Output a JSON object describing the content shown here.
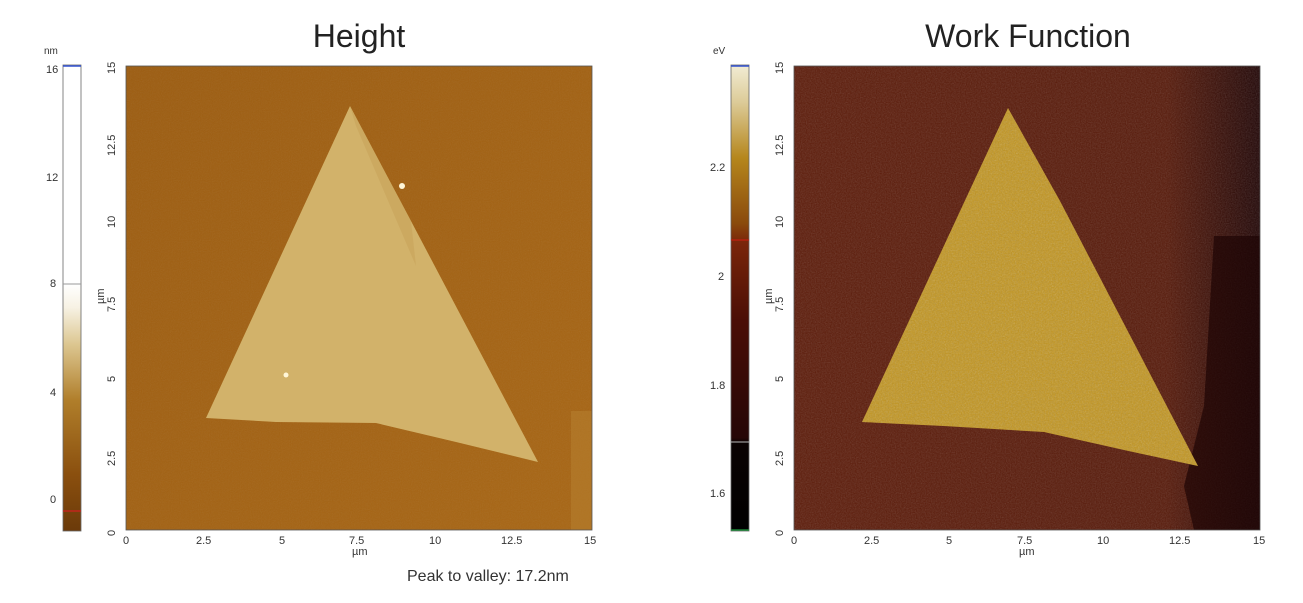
{
  "panels": [
    {
      "title": "Height",
      "colorbar": {
        "unit": "nm",
        "ticks": [
          "16",
          "12",
          "8",
          "4",
          "0"
        ],
        "colors": [
          "#6b3a0a",
          "#a66a12",
          "#c9a05a",
          "#f0e6cc",
          "#ffffff"
        ]
      },
      "axis_unit": "µm",
      "x_ticks": [
        "0",
        "2.5",
        "5",
        "7.5",
        "10",
        "12.5",
        "15"
      ],
      "y_ticks": [
        "0",
        "2.5",
        "5",
        "7.5",
        "10",
        "12.5",
        "15"
      ],
      "caption": "Peak to valley: 17.2nm",
      "background_color": "#a05f12",
      "flake_color": "#d4b56f"
    },
    {
      "title": "Work Function",
      "colorbar": {
        "unit": "eV",
        "ticks": [
          "2.2",
          "2",
          "1.8",
          "1.6"
        ],
        "colors": [
          "#000000",
          "#3a0808",
          "#6b1a0a",
          "#b07a10",
          "#e8dcb8"
        ]
      },
      "axis_unit": "µm",
      "x_ticks": [
        "0",
        "2.5",
        "5",
        "7.5",
        "10",
        "12.5",
        "15"
      ],
      "y_ticks": [
        "0",
        "2.5",
        "5",
        "7.5",
        "10",
        "12.5",
        "15"
      ],
      "background_color": "#5a1a08",
      "flake_color": "#c2941c"
    }
  ]
}
